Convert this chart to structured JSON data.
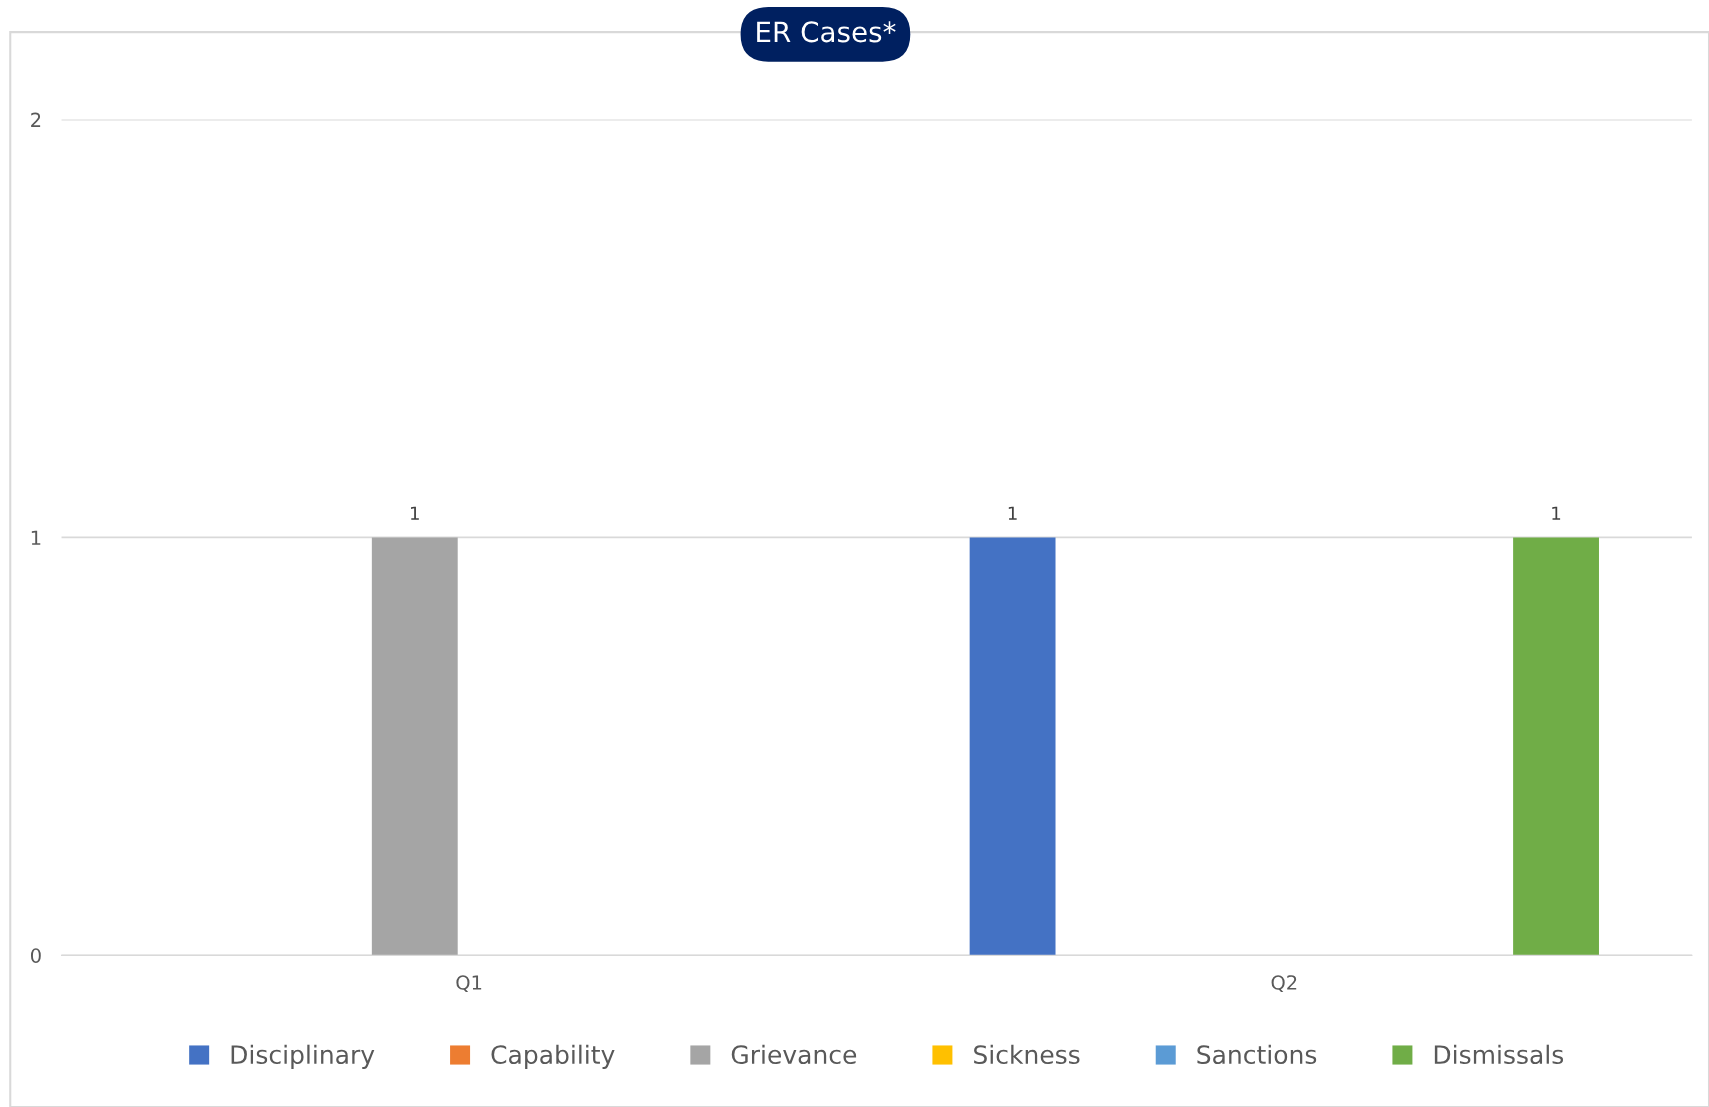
{
  "chart_data": {
    "type": "bar",
    "title": "ER Cases*",
    "categories": [
      "Q1",
      "Q2"
    ],
    "series": [
      {
        "name": "Disciplinary",
        "color": "#4472c4",
        "values": [
          null,
          1
        ],
        "value_labels": [
          null,
          "1"
        ]
      },
      {
        "name": "Capability",
        "color": "#ed7d31",
        "values": [
          null,
          null
        ],
        "value_labels": [
          null,
          null
        ]
      },
      {
        "name": "Grievance",
        "color": "#a5a5a5",
        "values": [
          1,
          null
        ],
        "value_labels": [
          "1",
          null
        ]
      },
      {
        "name": "Sickness",
        "color": "#ffc000",
        "values": [
          null,
          null
        ],
        "value_labels": [
          null,
          null
        ]
      },
      {
        "name": "Sanctions",
        "color": "#5b9bd5",
        "values": [
          null,
          null
        ],
        "value_labels": [
          null,
          null
        ]
      },
      {
        "name": "Dismissals",
        "color": "#70ad47",
        "values": [
          null,
          1
        ],
        "value_labels": [
          null,
          "1"
        ]
      }
    ],
    "ylim": [
      0,
      2
    ],
    "yticks": [
      0,
      1,
      2
    ],
    "grid": "y",
    "legend": "bottom"
  }
}
